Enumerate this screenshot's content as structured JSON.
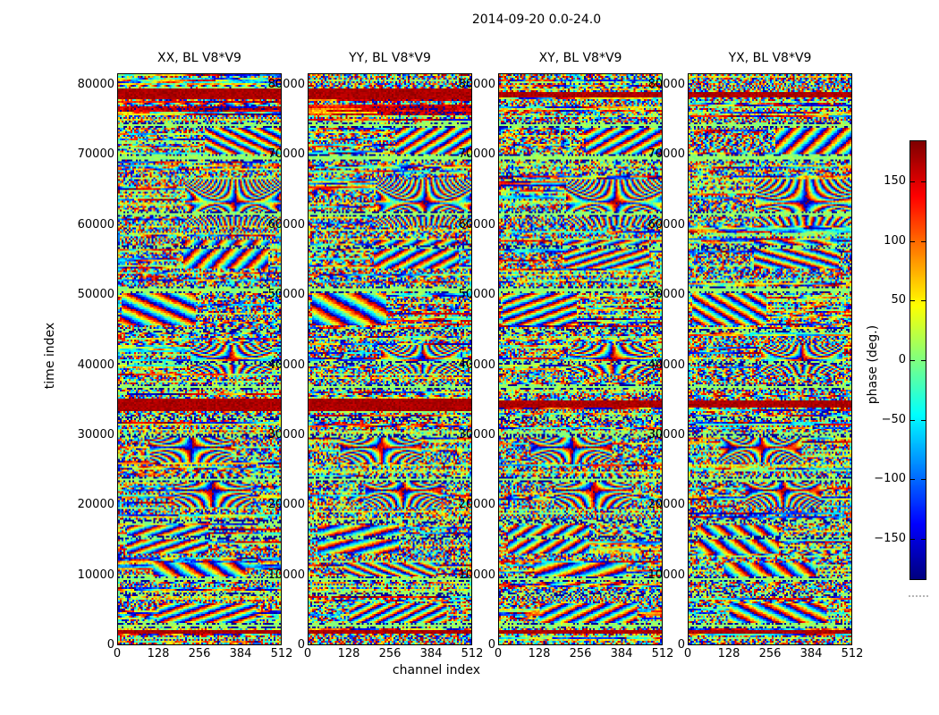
{
  "figure": {
    "title": "2014-09-20 0.0-24.0",
    "xlabel": "channel index",
    "ylabel": "time index"
  },
  "panels": [
    {
      "title": "XX, BL V8*V9"
    },
    {
      "title": "YY, BL V8*V9"
    },
    {
      "title": "XY, BL V8*V9"
    },
    {
      "title": "YX, BL V8*V9"
    }
  ],
  "axes": {
    "x_tick_labels": [
      "0",
      "128",
      "256",
      "384",
      "512"
    ],
    "x_tick_values": [
      0,
      128,
      256,
      384,
      512
    ],
    "x_max": 512,
    "y_tick_labels": [
      "0",
      "10000",
      "20000",
      "30000",
      "40000",
      "50000",
      "60000",
      "70000",
      "80000"
    ],
    "y_tick_values": [
      0,
      10000,
      20000,
      30000,
      40000,
      50000,
      60000,
      70000,
      80000
    ],
    "y_max": 81660
  },
  "colorbar": {
    "label": "phase (deg.)",
    "tick_labels": [
      "150",
      "100",
      "50",
      "0",
      "−50",
      "−100",
      "−150"
    ],
    "tick_values": [
      150,
      100,
      50,
      0,
      -50,
      -100,
      -150
    ],
    "vmin": -184,
    "vmax": 184,
    "colormap": "jet"
  },
  "chart_data": {
    "type": "heatmap",
    "title": "2014-09-20 0.0-24.0",
    "panels": [
      "XX, BL V8*V9",
      "YY, BL V8*V9",
      "XY, BL V8*V9",
      "YX, BL V8*V9"
    ],
    "xlabel": "channel index",
    "ylabel": "time index",
    "x_range": [
      0,
      512
    ],
    "y_range": [
      0,
      81660
    ],
    "value_label": "phase (deg.)",
    "value_range": [
      -180,
      180
    ],
    "colormap": "jet",
    "legend_position": "right colorbar",
    "grid": false,
    "content": "wrapped visibility phase vs channel/time: noise-like phase with coherent fringe fans and horizontal flagged (green ~0 deg) and saturated (dark red ~170 deg) time bands shared across all four polarization panels",
    "green_flag_bands": [
      [
        0.087,
        3
      ],
      [
        0.147,
        4
      ],
      [
        0.243,
        3
      ],
      [
        0.303,
        2
      ],
      [
        0.377,
        4
      ],
      [
        0.45,
        2
      ],
      [
        0.506,
        2
      ],
      [
        0.547,
        3
      ],
      [
        0.603,
        2
      ],
      [
        0.633,
        2
      ],
      [
        0.709,
        3
      ],
      [
        0.784,
        2
      ],
      [
        0.813,
        2
      ],
      [
        0.883,
        3
      ],
      [
        0.912,
        2
      ],
      [
        0.965,
        3
      ]
    ],
    "red_bands": [
      [
        0.035,
        6
      ],
      [
        0.578,
        7
      ],
      [
        0.978,
        2
      ]
    ],
    "fringe_regions": [
      {
        "t": 0.115,
        "h": 0.055,
        "cx": 0.78,
        "w": 0.5,
        "type": "diag"
      },
      {
        "t": 0.225,
        "h": 0.08,
        "cx": 0.72,
        "w": 0.62,
        "type": "fan"
      },
      {
        "t": 0.315,
        "h": 0.05,
        "cx": 0.66,
        "w": 0.52,
        "type": "diag"
      },
      {
        "t": 0.41,
        "h": 0.06,
        "cx": 0.25,
        "w": 0.46,
        "type": "diag"
      },
      {
        "t": 0.5,
        "h": 0.05,
        "cx": 0.7,
        "w": 0.5,
        "type": "fan"
      },
      {
        "t": 0.655,
        "h": 0.05,
        "cx": 0.45,
        "w": 0.5,
        "type": "fan"
      },
      {
        "t": 0.73,
        "h": 0.06,
        "cx": 0.58,
        "w": 0.46,
        "type": "fan"
      },
      {
        "t": 0.815,
        "h": 0.05,
        "cx": 0.3,
        "w": 0.5,
        "type": "diag"
      },
      {
        "t": 0.875,
        "h": 0.04,
        "cx": 0.5,
        "w": 0.56,
        "type": "diag"
      },
      {
        "t": 0.945,
        "h": 0.035,
        "cx": 0.55,
        "w": 0.6,
        "type": "diag"
      }
    ]
  }
}
